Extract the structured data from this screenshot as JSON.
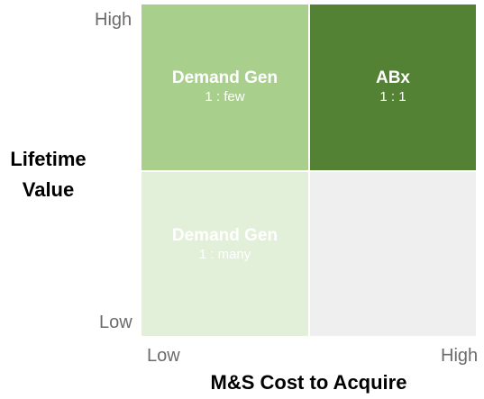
{
  "y_axis": {
    "title_line1": "Lifetime",
    "title_line2": "Value",
    "tick_high": "High",
    "tick_low": "Low"
  },
  "x_axis": {
    "title": "M&S Cost to Acquire",
    "tick_low": "Low",
    "tick_high": "High"
  },
  "quadrants": {
    "top_left": {
      "title": "Demand Gen",
      "ratio": "1 : few",
      "color": "#a9cf8c"
    },
    "top_right": {
      "title": "ABx",
      "ratio": "1 : 1",
      "color": "#548235"
    },
    "bottom_left": {
      "title": "Demand Gen",
      "ratio": "1 : many",
      "color": "#e2efd9"
    },
    "bottom_right": {
      "color": "#efefef"
    }
  }
}
